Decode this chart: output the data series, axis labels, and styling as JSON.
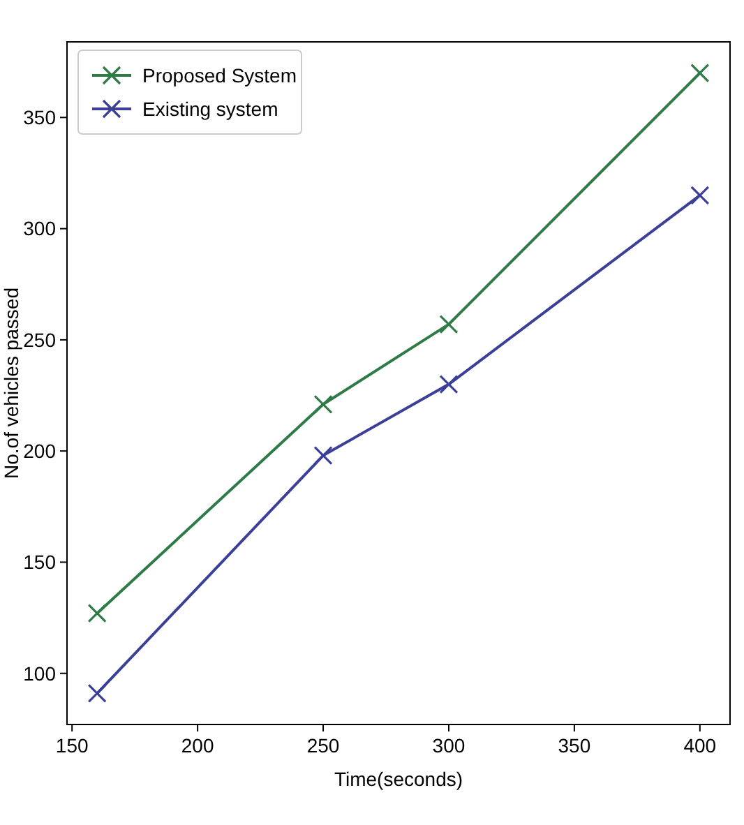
{
  "chart_data": {
    "type": "line",
    "xlabel": "Time(seconds)",
    "ylabel": "No.of vehicles passed",
    "x": [
      160,
      250,
      300,
      400
    ],
    "series": [
      {
        "name": "Proposed System",
        "color": "#2e7b47",
        "values": [
          127,
          221,
          257,
          370
        ]
      },
      {
        "name": "Existing system",
        "color": "#3b3f98",
        "values": [
          91,
          198,
          230,
          315
        ]
      }
    ],
    "xlim": [
      148,
      412
    ],
    "xticks": [
      150,
      200,
      250,
      300,
      350,
      400
    ],
    "ylim": [
      77,
      384
    ],
    "yticks": [
      100,
      150,
      200,
      250,
      300,
      350
    ],
    "legend": "top left",
    "marker": "cross",
    "line_style": "solid"
  }
}
